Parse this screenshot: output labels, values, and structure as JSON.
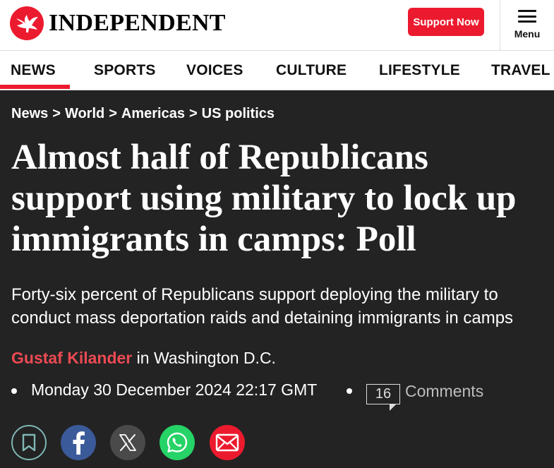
{
  "header": {
    "logo_text": "INDEPENDENT",
    "support_label": "Support Now",
    "menu_label": "Menu"
  },
  "nav": {
    "items": [
      {
        "label": "NEWS",
        "active": true
      },
      {
        "label": "SPORTS",
        "active": false
      },
      {
        "label": "VOICES",
        "active": false
      },
      {
        "label": "CULTURE",
        "active": false
      },
      {
        "label": "LIFESTYLE",
        "active": false
      },
      {
        "label": "TRAVEL",
        "active": false
      }
    ]
  },
  "breadcrumb": {
    "items": [
      "News",
      "World",
      "Americas",
      "US politics"
    ],
    "separator": ">"
  },
  "article": {
    "headline": "Almost half of Republicans support using military to lock up immigrants in camps: Poll",
    "standfirst": "Forty-six percent of Republicans support deploying the military to conduct mass deportation raids and detaining immigrants in camps",
    "author": "Gustaf Kilander",
    "location": "in Washington D.C.",
    "date": "Monday 30 December 2024 22:17 GMT",
    "comment_count": "16",
    "comments_label": "Comments"
  },
  "share": {
    "buttons": [
      "bookmark-icon",
      "facebook-icon",
      "x-icon",
      "whatsapp-icon",
      "email-icon"
    ]
  },
  "colors": {
    "brand_red": "#ec1a2e",
    "author_red": "#ec4a53",
    "background": "#232323",
    "facebook": "#3b5a9a",
    "x": "#4a4a4a",
    "whatsapp": "#26d366",
    "email": "#ec1a2e"
  }
}
